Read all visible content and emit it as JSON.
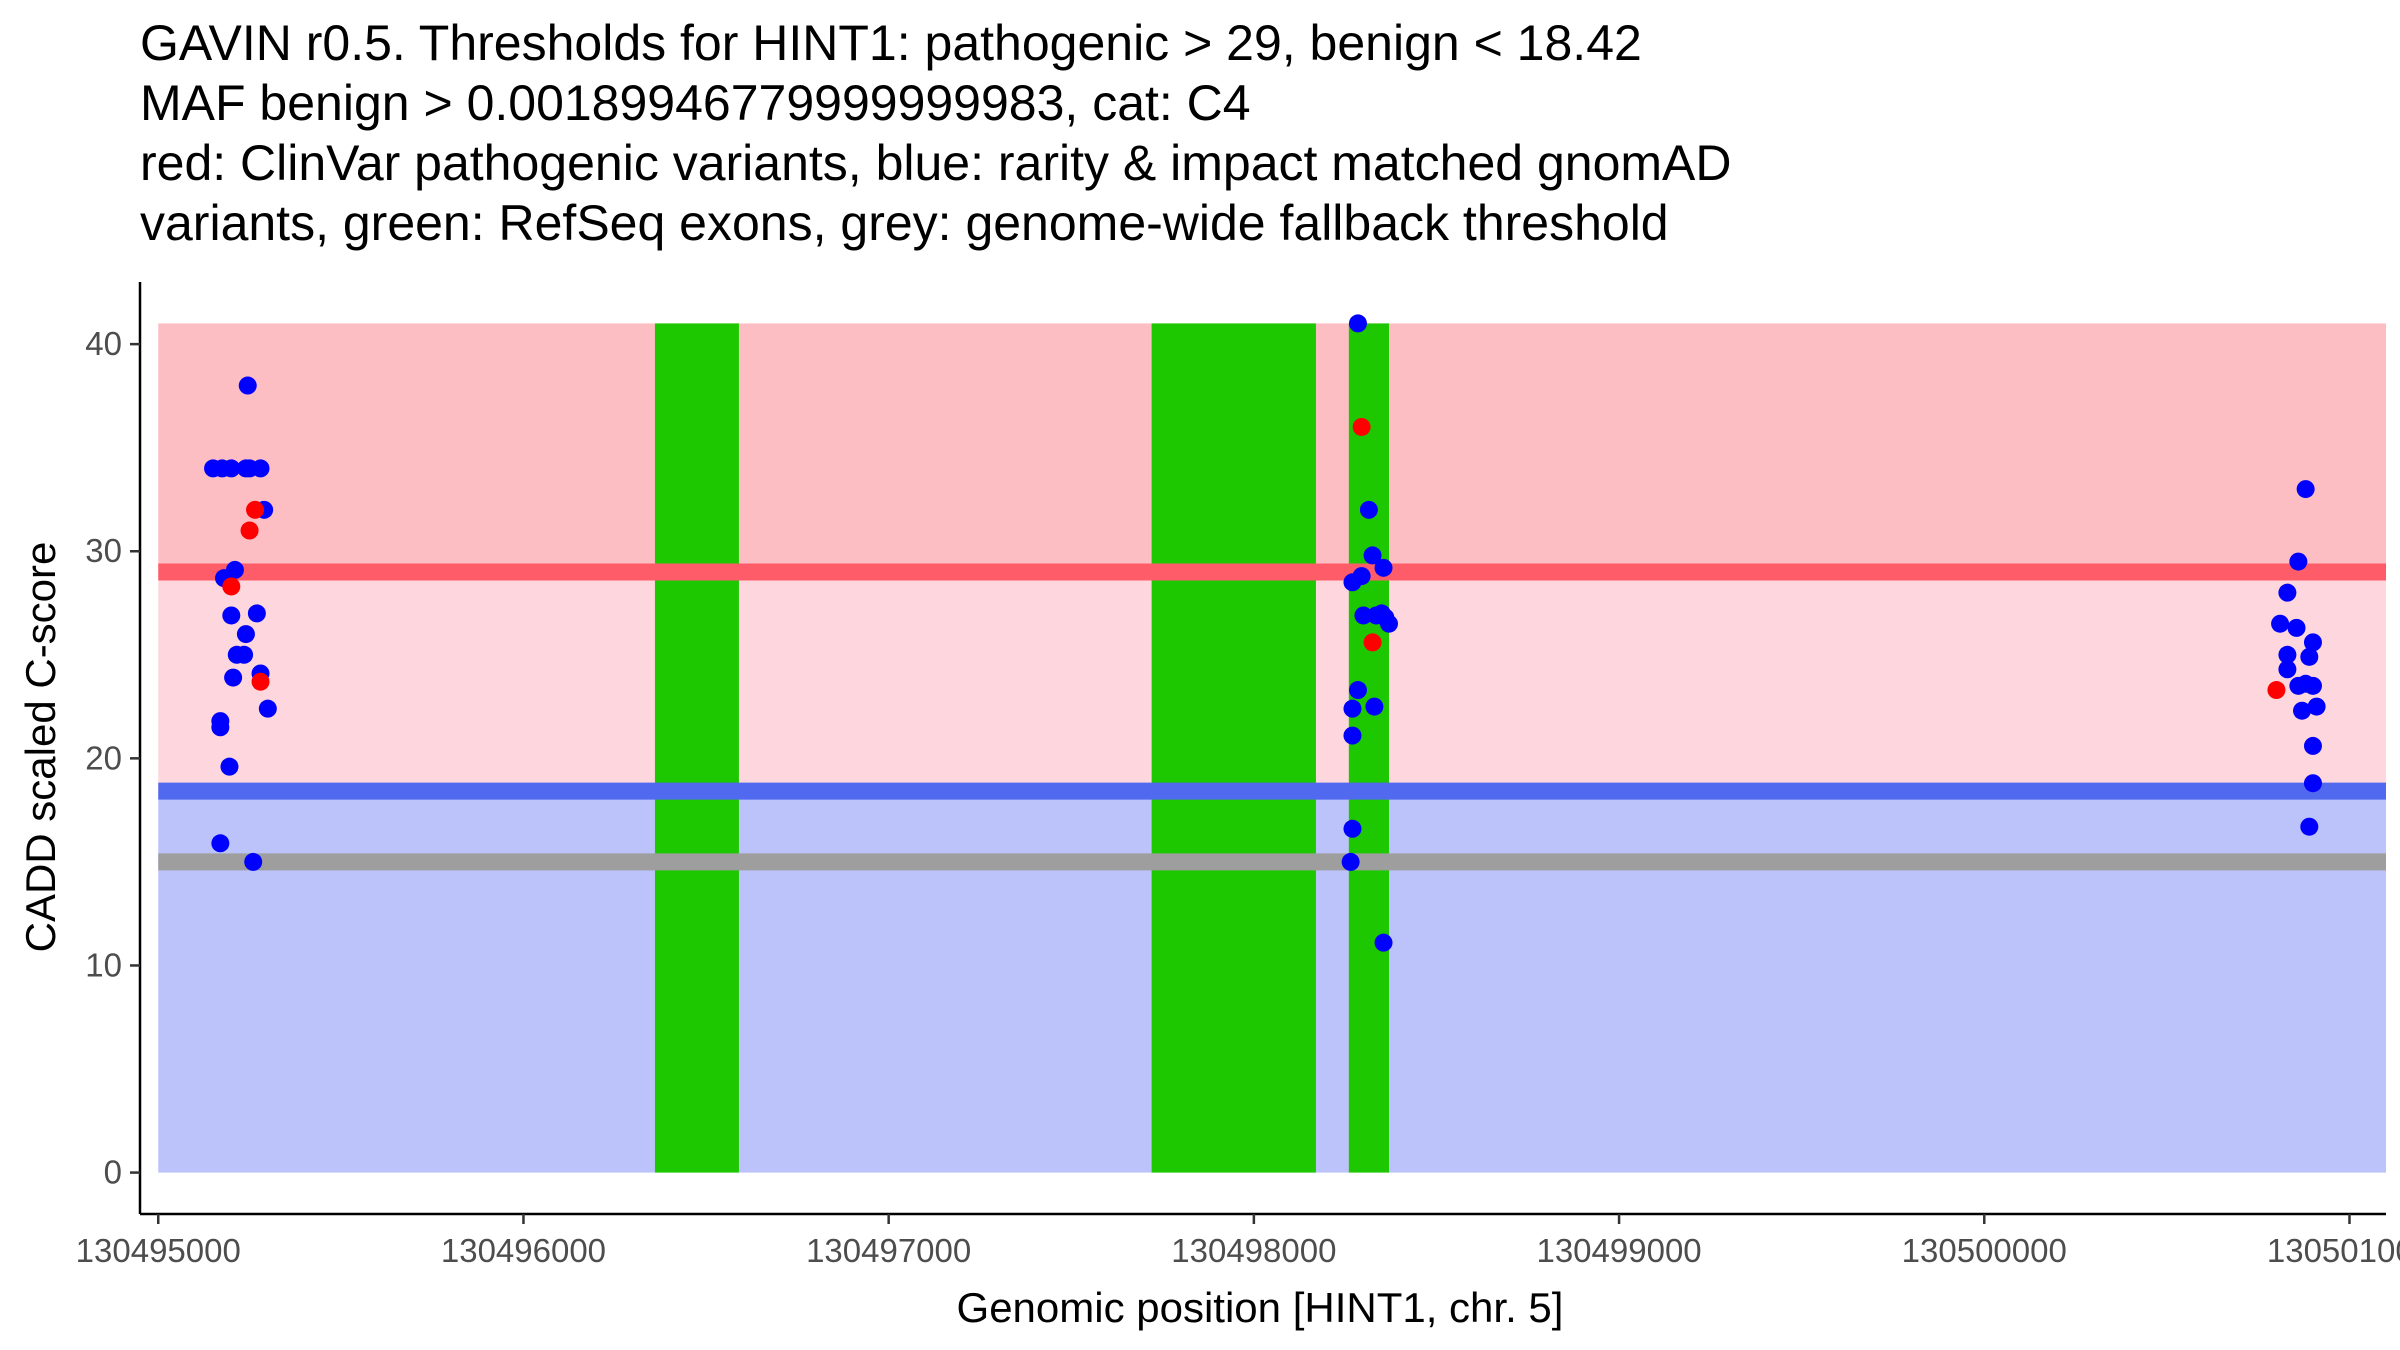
{
  "chart_data": {
    "type": "scatter",
    "title_lines": [
      "GAVIN r0.5. Thresholds for HINT1: pathogenic > 29, benign < 18.42",
      "MAF benign > 0.00189946779999999983, cat: C4",
      "red: ClinVar pathogenic variants, blue: rarity & impact matched gnomAD",
      "variants, green: RefSeq exons, grey: genome-wide fallback threshold"
    ],
    "xlabel": "Genomic position [HINT1, chr. 5]",
    "ylabel": "CADD scaled C-score",
    "xlim": [
      130494950,
      130501100
    ],
    "ylim": [
      -2,
      43
    ],
    "x_ticks": [
      130495000,
      130496000,
      130497000,
      130498000,
      130499000,
      130500000,
      130501000
    ],
    "y_ticks": [
      0,
      10,
      20,
      30,
      40
    ],
    "region_xmin": 130495000,
    "region_xmax": 130501100,
    "score_max": 41,
    "pathogenic_threshold": 29,
    "benign_threshold": 18.42,
    "fallback_threshold": 15,
    "colors": {
      "pathogenic_band": "#fdbec3",
      "mid_band": "#fdd7dd",
      "benign_band": "#bcc3fa",
      "pathogenic_line": "#fe5c68",
      "benign_line": "#5169ef",
      "fallback_line": "#9e9e9e",
      "exon": "#1ec800",
      "pathogenic_point": "#ff0000",
      "benign_point": "#0000ff"
    },
    "exons": [
      {
        "start": 130496360,
        "end": 130496590
      },
      {
        "start": 130497720,
        "end": 130498170
      },
      {
        "start": 130498260,
        "end": 130498370
      }
    ],
    "series": [
      {
        "name": "ClinVar pathogenic variants",
        "points": [
          [
            130495200,
            28.3
          ],
          [
            130495250,
            31.0
          ],
          [
            130495265,
            32.0
          ],
          [
            130495280,
            23.7
          ],
          [
            130498295,
            36.0
          ],
          [
            130498325,
            25.6
          ],
          [
            130500800,
            23.3
          ]
        ]
      },
      {
        "name": "rarity & impact matched gnomAD variants",
        "points": [
          [
            130495150,
            34.0
          ],
          [
            130495175,
            34.0
          ],
          [
            130495200,
            34.0
          ],
          [
            130495240,
            34.0
          ],
          [
            130495250,
            34.0
          ],
          [
            130495280,
            34.0
          ],
          [
            130495290,
            32.0
          ],
          [
            130495245,
            38.0
          ],
          [
            130495180,
            28.7
          ],
          [
            130495210,
            29.1
          ],
          [
            130495270,
            27.0
          ],
          [
            130495240,
            26.0
          ],
          [
            130495200,
            26.9
          ],
          [
            130495215,
            25.0
          ],
          [
            130495235,
            25.0
          ],
          [
            130495280,
            24.1
          ],
          [
            130495205,
            23.9
          ],
          [
            130495300,
            22.4
          ],
          [
            130495170,
            21.8
          ],
          [
            130495170,
            21.5
          ],
          [
            130495195,
            19.6
          ],
          [
            130495170,
            15.9
          ],
          [
            130495260,
            15.0
          ],
          [
            130498285,
            41.0
          ],
          [
            130498315,
            32.0
          ],
          [
            130498325,
            29.8
          ],
          [
            130498295,
            28.8
          ],
          [
            130498270,
            28.5
          ],
          [
            130498355,
            29.2
          ],
          [
            130498300,
            26.9
          ],
          [
            130498335,
            26.9
          ],
          [
            130498350,
            27.0
          ],
          [
            130498360,
            26.8
          ],
          [
            130498370,
            26.5
          ],
          [
            130498285,
            23.3
          ],
          [
            130498270,
            22.4
          ],
          [
            130498330,
            22.5
          ],
          [
            130498270,
            21.1
          ],
          [
            130498270,
            16.6
          ],
          [
            130498265,
            15.0
          ],
          [
            130498355,
            11.1
          ],
          [
            130500880,
            33.0
          ],
          [
            130500860,
            29.5
          ],
          [
            130500830,
            28.0
          ],
          [
            130500810,
            26.5
          ],
          [
            130500855,
            26.3
          ],
          [
            130500900,
            25.6
          ],
          [
            130500830,
            25.0
          ],
          [
            130500890,
            24.9
          ],
          [
            130500830,
            24.3
          ],
          [
            130500860,
            23.5
          ],
          [
            130500880,
            23.6
          ],
          [
            130500900,
            23.5
          ],
          [
            130500870,
            22.3
          ],
          [
            130500910,
            22.5
          ],
          [
            130500900,
            20.6
          ],
          [
            130500900,
            18.8
          ],
          [
            130500890,
            16.7
          ]
        ]
      }
    ]
  }
}
